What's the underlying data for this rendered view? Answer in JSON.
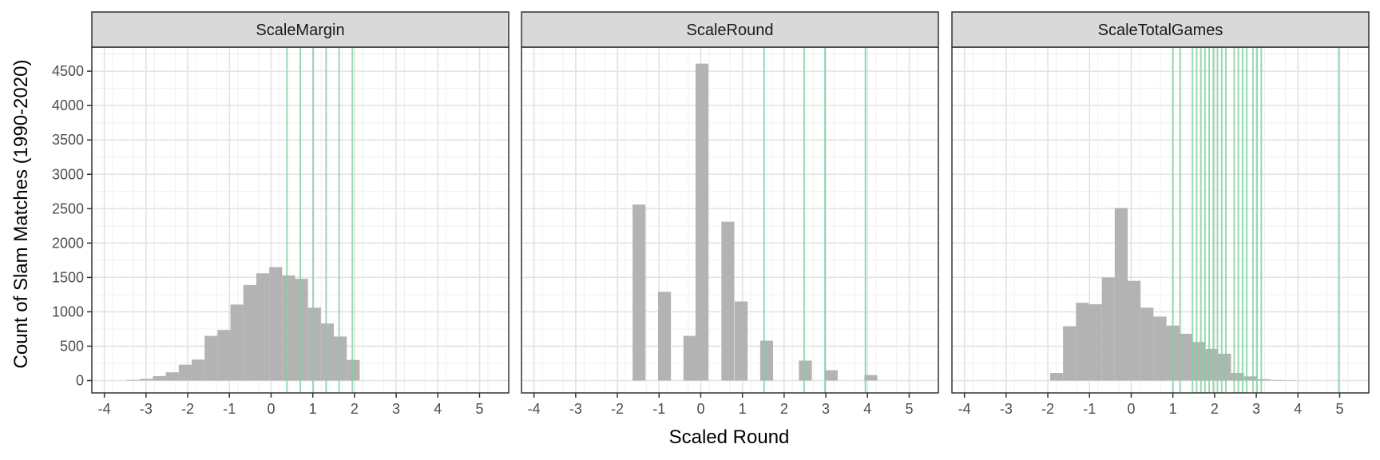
{
  "chart_data": {
    "type": "bar",
    "xlabel": "Scaled Round",
    "ylabel": "Count of Slam Matches (1990-2020)",
    "xlim": [
      -4.3,
      5.7
    ],
    "ylim": [
      -180,
      4850
    ],
    "x_ticks": [
      -4,
      -3,
      -2,
      -1,
      0,
      1,
      2,
      3,
      4,
      5
    ],
    "y_ticks": [
      0,
      500,
      1000,
      1500,
      2000,
      2500,
      3000,
      3500,
      4000,
      4500
    ],
    "bin_width": 0.31,
    "grid": true,
    "bar_color": "#b3b3b3",
    "vline_color": "#7fd0a0",
    "strip_color": "#d9d9d9",
    "panels": [
      {
        "name": "ScaleMargin",
        "bins": [
          [
            -3.3,
            10
          ],
          [
            -2.99,
            25
          ],
          [
            -2.68,
            65
          ],
          [
            -2.37,
            120
          ],
          [
            -2.06,
            230
          ],
          [
            -1.75,
            305
          ],
          [
            -1.44,
            650
          ],
          [
            -1.13,
            735
          ],
          [
            -0.82,
            1105
          ],
          [
            -0.51,
            1390
          ],
          [
            -0.2,
            1560
          ],
          [
            0.11,
            1650
          ],
          [
            0.42,
            1530
          ],
          [
            0.73,
            1480
          ],
          [
            1.04,
            1060
          ],
          [
            1.35,
            830
          ],
          [
            1.66,
            640
          ],
          [
            1.97,
            300
          ]
        ],
        "vlines": [
          0.38,
          0.7,
          1.01,
          1.32,
          1.63,
          1.95
        ]
      },
      {
        "name": "ScaleRound",
        "bins": [
          [
            -1.48,
            2560
          ],
          [
            -0.87,
            1290
          ],
          [
            -0.26,
            650
          ],
          [
            0.03,
            4610
          ],
          [
            0.65,
            2310
          ],
          [
            0.97,
            1150
          ],
          [
            1.58,
            580
          ],
          [
            2.51,
            290
          ],
          [
            3.13,
            150
          ],
          [
            4.08,
            80
          ]
        ],
        "vlines": [
          1.52,
          2.48,
          2.98,
          3.95
        ]
      },
      {
        "name": "ScaleTotalGames",
        "bins": [
          [
            -1.79,
            110
          ],
          [
            -1.48,
            790
          ],
          [
            -1.17,
            1130
          ],
          [
            -0.86,
            1110
          ],
          [
            -0.55,
            1500
          ],
          [
            -0.24,
            2510
          ],
          [
            0.07,
            1450
          ],
          [
            0.38,
            1060
          ],
          [
            0.69,
            930
          ],
          [
            1.0,
            800
          ],
          [
            1.31,
            680
          ],
          [
            1.62,
            560
          ],
          [
            1.93,
            460
          ],
          [
            2.24,
            390
          ],
          [
            2.55,
            110
          ],
          [
            2.86,
            60
          ],
          [
            3.17,
            20
          ],
          [
            3.48,
            10
          ],
          [
            3.79,
            5
          ]
        ],
        "vlines": [
          1.0,
          1.17,
          1.47,
          1.57,
          1.67,
          1.77,
          1.87,
          1.97,
          2.07,
          2.17,
          2.27,
          2.47,
          2.57,
          2.67,
          2.77,
          2.92,
          3.02,
          3.12,
          4.98
        ]
      }
    ]
  }
}
